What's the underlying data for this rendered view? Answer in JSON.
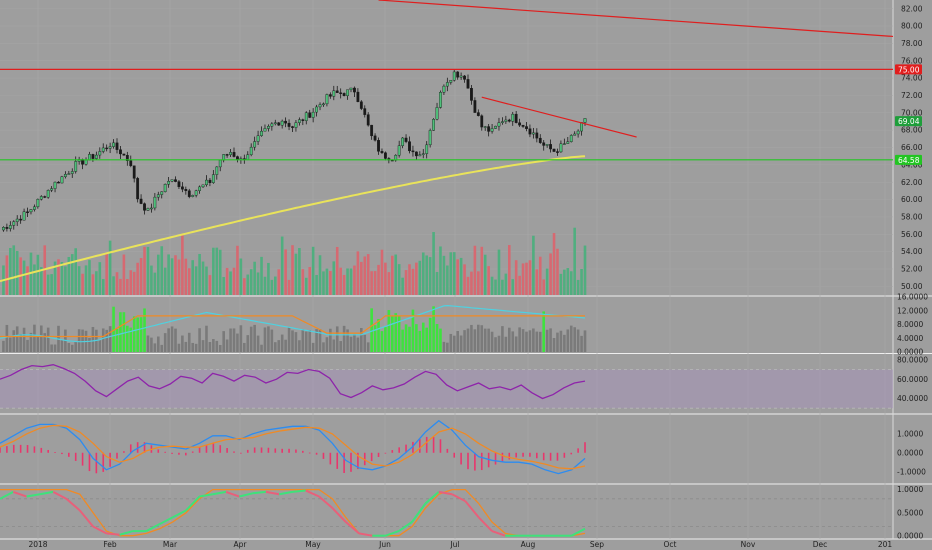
{
  "chart_data": [
    {
      "type": "candlestick",
      "panel": "price",
      "title": "",
      "xlabel": "",
      "ylabel": "",
      "ylim": [
        49,
        83
      ],
      "y_ticks": [
        "82.00",
        "80.00",
        "78.00",
        "76.00",
        "74.00",
        "72.00",
        "70.00",
        "68.00",
        "66.00",
        "64.00",
        "62.00",
        "60.00",
        "58.00",
        "56.00",
        "54.00",
        "52.00",
        "50.00"
      ],
      "price_labels": [
        {
          "text": "75.00",
          "value": 75.0,
          "color": "#e01e1e"
        },
        {
          "text": "69.04",
          "value": 69.04,
          "color": "#1e9e3a"
        },
        {
          "text": "64.58",
          "value": 64.58,
          "color": "#22c522"
        }
      ],
      "close_series": [
        {
          "x": 0,
          "y": 56.5
        },
        {
          "x": 8,
          "y": 58.5
        },
        {
          "x": 15,
          "y": 61.5
        },
        {
          "x": 22,
          "y": 64
        },
        {
          "x": 28,
          "y": 65.2
        },
        {
          "x": 32,
          "y": 66.4
        },
        {
          "x": 35,
          "y": 65.5
        },
        {
          "x": 38,
          "y": 64.2
        },
        {
          "x": 40,
          "y": 60.2
        },
        {
          "x": 43,
          "y": 58.6
        },
        {
          "x": 46,
          "y": 60.6
        },
        {
          "x": 49,
          "y": 62.2
        },
        {
          "x": 52,
          "y": 61.8
        },
        {
          "x": 55,
          "y": 60.7
        },
        {
          "x": 58,
          "y": 61.3
        },
        {
          "x": 61,
          "y": 62.1
        },
        {
          "x": 64,
          "y": 64.6
        },
        {
          "x": 67,
          "y": 65.5
        },
        {
          "x": 70,
          "y": 64.5
        },
        {
          "x": 73,
          "y": 65.8
        },
        {
          "x": 76,
          "y": 67.5
        },
        {
          "x": 79,
          "y": 68.6
        },
        {
          "x": 82,
          "y": 69.2
        },
        {
          "x": 85,
          "y": 68.4
        },
        {
          "x": 88,
          "y": 69.3
        },
        {
          "x": 91,
          "y": 70.2
        },
        {
          "x": 94,
          "y": 71.4
        },
        {
          "x": 97,
          "y": 72.2
        },
        {
          "x": 100,
          "y": 72.3
        },
        {
          "x": 103,
          "y": 72.6
        },
        {
          "x": 105,
          "y": 70.8
        },
        {
          "x": 108,
          "y": 67.2
        },
        {
          "x": 111,
          "y": 65.1
        },
        {
          "x": 114,
          "y": 64.9
        },
        {
          "x": 117,
          "y": 66.8
        },
        {
          "x": 120,
          "y": 65.5
        },
        {
          "x": 123,
          "y": 65.3
        },
        {
          "x": 126,
          "y": 69.5
        },
        {
          "x": 129,
          "y": 73.4
        },
        {
          "x": 132,
          "y": 74.6
        },
        {
          "x": 135,
          "y": 74.2
        },
        {
          "x": 137,
          "y": 71.5
        },
        {
          "x": 140,
          "y": 68.4
        },
        {
          "x": 143,
          "y": 67.8
        },
        {
          "x": 146,
          "y": 69.2
        },
        {
          "x": 149,
          "y": 69.5
        },
        {
          "x": 152,
          "y": 68.7
        },
        {
          "x": 155,
          "y": 67.6
        },
        {
          "x": 158,
          "y": 66.2
        },
        {
          "x": 161,
          "y": 65.6
        },
        {
          "x": 164,
          "y": 66.3
        },
        {
          "x": 167,
          "y": 67.4
        },
        {
          "x": 170,
          "y": 69.0
        }
      ],
      "moving_average": {
        "color": "#e9e35a",
        "start": 50.6,
        "end": 65.0
      },
      "horizontal_lines": [
        {
          "value": 75.0,
          "color": "#e01e1e"
        },
        {
          "value": 64.58,
          "color": "#22c522"
        }
      ],
      "trend_lines": [
        {
          "from": {
            "x": 110,
            "y": 83.0
          },
          "to": {
            "x": 260,
            "y": 78.8
          },
          "color": "#e01e1e"
        },
        {
          "from": {
            "x": 140,
            "y": 71.8
          },
          "to": {
            "x": 185,
            "y": 67.2
          },
          "color": "#e01e1e"
        }
      ],
      "volume": {
        "up_color": "#4caf7d",
        "down_color": "#d9666f"
      }
    },
    {
      "type": "bar",
      "panel": "volume_indicator",
      "ylim": [
        0,
        16
      ],
      "y_ticks": [
        "16.0000",
        "12.0000",
        "8.0000",
        "4.0000",
        "0.0000"
      ],
      "line_colors": [
        "#4fd1e0",
        "#f08a24"
      ]
    },
    {
      "type": "line",
      "panel": "rsi",
      "ylim": [
        25,
        85
      ],
      "band": [
        30,
        70
      ],
      "y_ticks": [
        "80.0000",
        "60.0000",
        "40.0000"
      ],
      "series": [
        {
          "color": "#8e24aa",
          "values": [
            60,
            64,
            70,
            74,
            73,
            75,
            71,
            66,
            58,
            48,
            42,
            50,
            58,
            62,
            53,
            50,
            55,
            63,
            61,
            56,
            66,
            63,
            58,
            64,
            62,
            56,
            60,
            67,
            66,
            70,
            68,
            61,
            45,
            41,
            46,
            53,
            49,
            51,
            55,
            62,
            68,
            65,
            54,
            48,
            52,
            56,
            50,
            52,
            49,
            54,
            46,
            40,
            44,
            51,
            56,
            58
          ]
        }
      ]
    },
    {
      "type": "line",
      "panel": "macd",
      "ylim": [
        -1.6,
        2.0
      ],
      "y_ticks": [
        "1.0000",
        "0.0000",
        "-1.0000"
      ],
      "series": [
        {
          "color": "#2d8cf0",
          "values": [
            0.5,
            0.9,
            1.3,
            1.5,
            1.5,
            1.3,
            0.7,
            -0.3,
            -0.9,
            -0.6,
            0.1,
            0.5,
            0.4,
            0.3,
            0.2,
            0.5,
            0.9,
            0.9,
            0.7,
            1.0,
            1.2,
            1.3,
            1.4,
            1.4,
            1.2,
            0.5,
            -0.4,
            -0.8,
            -0.9,
            -0.7,
            -0.3,
            0.3,
            1.1,
            1.7,
            1.2,
            0.4,
            -0.2,
            -0.4,
            -0.5,
            -0.5,
            -0.6,
            -0.9,
            -1.1,
            -0.9,
            -0.3
          ]
        },
        {
          "color": "#f08a24",
          "values": [
            0.3,
            0.6,
            1.0,
            1.3,
            1.45,
            1.4,
            1.1,
            0.5,
            -0.2,
            -0.5,
            -0.3,
            0.1,
            0.3,
            0.35,
            0.3,
            0.3,
            0.5,
            0.7,
            0.75,
            0.8,
            1.0,
            1.15,
            1.25,
            1.35,
            1.3,
            1.0,
            0.4,
            -0.2,
            -0.6,
            -0.7,
            -0.5,
            -0.1,
            0.5,
            1.1,
            1.3,
            1.0,
            0.5,
            0.1,
            -0.2,
            -0.35,
            -0.45,
            -0.6,
            -0.8,
            -0.85,
            -0.7
          ]
        }
      ]
    },
    {
      "type": "line",
      "panel": "stochastic",
      "ylim": [
        -0.05,
        1.1
      ],
      "y_ticks": [
        "1.0000",
        "0.5000",
        "0.0000"
      ],
      "series": [
        {
          "color": "#f08a24",
          "values": [
            1,
            1,
            1,
            1,
            1,
            1,
            0.9,
            0.5,
            0.1,
            0,
            0,
            0.05,
            0.15,
            0.3,
            0.5,
            0.8,
            1,
            1,
            1,
            1,
            1,
            1,
            1,
            1,
            1,
            0.8,
            0.4,
            0.05,
            0,
            0,
            0,
            0.2,
            0.6,
            0.9,
            1,
            1,
            0.7,
            0.3,
            0.05,
            0,
            0,
            0,
            0,
            0,
            0.05
          ]
        },
        {
          "color": "#e8607a",
          "values": [
            0.8,
            0.95,
            0.85,
            0.9,
            0.95,
            0.8,
            0.55,
            0.2,
            0.05,
            0.02,
            0.1,
            0.1,
            0.25,
            0.4,
            0.55,
            0.85,
            0.9,
            0.95,
            0.85,
            0.92,
            0.95,
            0.9,
            0.95,
            0.98,
            0.85,
            0.6,
            0.3,
            0.05,
            0,
            0,
            0.1,
            0.3,
            0.7,
            0.95,
            0.9,
            0.75,
            0.4,
            0.1,
            0,
            0,
            0,
            0,
            0,
            0,
            0.15
          ]
        }
      ]
    }
  ],
  "x_axis": {
    "labels": [
      "2018",
      "Feb",
      "Mar",
      "Apr",
      "May",
      "Jun",
      "Jul",
      "Aug",
      "Sep",
      "Oct",
      "Nov",
      "Dec",
      "201"
    ]
  }
}
